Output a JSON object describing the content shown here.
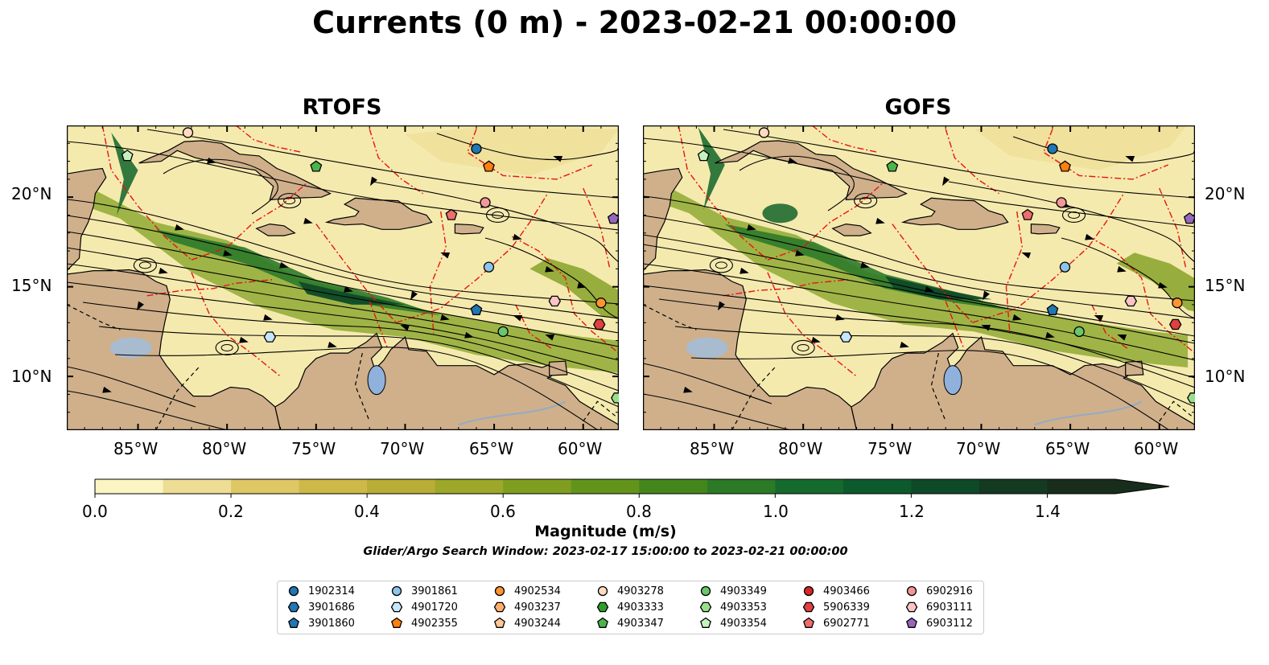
{
  "title": "Currents (0 m) - 2023-02-21 00:00:00",
  "panels": [
    {
      "title": "RTOFS"
    },
    {
      "title": "GOFS"
    }
  ],
  "axes": {
    "x_ticks": [
      "85°W",
      "80°W",
      "75°W",
      "70°W",
      "65°W",
      "60°W"
    ],
    "y_ticks": [
      "20°N",
      "15°N",
      "10°N"
    ],
    "lon_range": [
      -89,
      -58
    ],
    "lat_range": [
      7,
      24
    ]
  },
  "colorbar": {
    "label": "Magnitude (m/s)",
    "ticks": [
      "0.0",
      "0.2",
      "0.4",
      "0.6",
      "0.8",
      "1.0",
      "1.2",
      "1.4"
    ],
    "range": [
      0,
      1.5
    ],
    "extend": "max",
    "colors": [
      "#fbf5c3",
      "#eedd94",
      "#dfc766",
      "#cdb848",
      "#b8ad37",
      "#9da72a",
      "#7f9e20",
      "#62941c",
      "#45861c",
      "#2c7a25",
      "#156b2d",
      "#0d5a2c",
      "#0f4a28",
      "#143a22",
      "#182d1b"
    ]
  },
  "search_window": "Glider/Argo Search Window: 2023-02-17 15:00:00 to 2023-02-21 00:00:00",
  "legend": [
    {
      "id": "1902314",
      "color": "#1f77b4",
      "shape": "circle"
    },
    {
      "id": "3901686",
      "color": "#1f77b4",
      "shape": "hexagon"
    },
    {
      "id": "3901860",
      "color": "#1f77b4",
      "shape": "pentagon"
    },
    {
      "id": "3901861",
      "color": "#8dc4ea",
      "shape": "circle"
    },
    {
      "id": "4901720",
      "color": "#c6e7fb",
      "shape": "hexagon"
    },
    {
      "id": "4902355",
      "color": "#ff7f0e",
      "shape": "pentagon"
    },
    {
      "id": "4902534",
      "color": "#ff9430",
      "shape": "circle"
    },
    {
      "id": "4903237",
      "color": "#ffae6b",
      "shape": "hexagon"
    },
    {
      "id": "4903244",
      "color": "#ffc795",
      "shape": "pentagon"
    },
    {
      "id": "4903278",
      "color": "#ffdcc0",
      "shape": "circle"
    },
    {
      "id": "4903333",
      "color": "#2ca02c",
      "shape": "hexagon"
    },
    {
      "id": "4903347",
      "color": "#4db34d",
      "shape": "pentagon"
    },
    {
      "id": "4903349",
      "color": "#6cc66c",
      "shape": "circle"
    },
    {
      "id": "4903353",
      "color": "#98df8a",
      "shape": "hexagon"
    },
    {
      "id": "4903354",
      "color": "#c7f2c0",
      "shape": "pentagon"
    },
    {
      "id": "4903466",
      "color": "#d62728",
      "shape": "circle"
    },
    {
      "id": "5906339",
      "color": "#e04040",
      "shape": "hexagon"
    },
    {
      "id": "6902771",
      "color": "#ec6e6e",
      "shape": "pentagon"
    },
    {
      "id": "6902916",
      "color": "#f59797",
      "shape": "circle"
    },
    {
      "id": "6903111",
      "color": "#fcc4c4",
      "shape": "hexagon"
    },
    {
      "id": "6903112",
      "color": "#9467bd",
      "shape": "pentagon"
    }
  ],
  "floats": [
    {
      "id": "3901861",
      "lon": -65.3,
      "lat": 16.1
    },
    {
      "id": "1902314",
      "lon": -66.0,
      "lat": 22.7
    },
    {
      "id": "4902355",
      "lon": -65.3,
      "lat": 21.7
    },
    {
      "id": "4903278",
      "lon": -82.2,
      "lat": 23.6
    },
    {
      "id": "4903354",
      "lon": -85.6,
      "lat": 22.3
    },
    {
      "id": "4903347",
      "lon": -75.0,
      "lat": 21.7
    },
    {
      "id": "6902916",
      "lon": -65.5,
      "lat": 19.7
    },
    {
      "id": "6902771",
      "lon": -67.4,
      "lat": 19.0
    },
    {
      "id": "6903112",
      "lon": -58.3,
      "lat": 18.8
    },
    {
      "id": "3901860",
      "lon": -66.0,
      "lat": 13.7
    },
    {
      "id": "6903111",
      "lon": -61.6,
      "lat": 14.2
    },
    {
      "id": "4902534",
      "lon": -59.0,
      "lat": 14.1
    },
    {
      "id": "5906339",
      "lon": -59.1,
      "lat": 12.9
    },
    {
      "id": "4903349",
      "lon": -64.5,
      "lat": 12.5
    },
    {
      "id": "4901720",
      "lon": -77.6,
      "lat": 12.2
    },
    {
      "id": "4903353",
      "lon": -58.1,
      "lat": 8.8
    }
  ]
}
